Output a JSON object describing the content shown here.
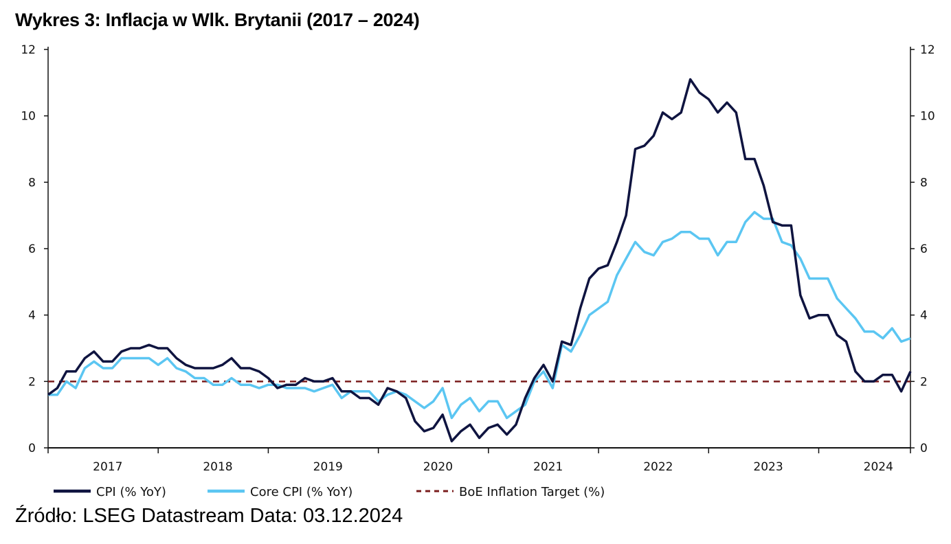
{
  "title": "Wykres 3: Inflacja w Wlk. Brytanii (2017 – 2024)",
  "source": "Źródło: LSEG Datastream Data: 03.12.2024",
  "chart_data": {
    "type": "line",
    "title": "Wykres 3: Inflacja w Wlk. Brytanii (2017 – 2024)",
    "x_start": "2016-12",
    "x_end": "2024-10",
    "x_frequency": "monthly",
    "x_tick_labels": [
      "2017",
      "2018",
      "2019",
      "2020",
      "2021",
      "2022",
      "2023",
      "2024"
    ],
    "ylim": [
      0,
      12
    ],
    "y_ticks": [
      0,
      2,
      4,
      6,
      8,
      10,
      12
    ],
    "y_axis_both_sides": true,
    "grid": false,
    "legend": "bottom",
    "series": [
      {
        "name": "CPI (% YoY)",
        "color": "#0f1440",
        "values": [
          1.6,
          1.8,
          2.3,
          2.3,
          2.7,
          2.9,
          2.6,
          2.6,
          2.9,
          3.0,
          3.0,
          3.1,
          3.0,
          3.0,
          2.7,
          2.5,
          2.4,
          2.4,
          2.4,
          2.5,
          2.7,
          2.4,
          2.4,
          2.3,
          2.1,
          1.8,
          1.9,
          1.9,
          2.1,
          2.0,
          2.0,
          2.1,
          1.7,
          1.7,
          1.5,
          1.5,
          1.3,
          1.8,
          1.7,
          1.5,
          0.8,
          0.5,
          0.6,
          1.0,
          0.2,
          0.5,
          0.7,
          0.3,
          0.6,
          0.7,
          0.4,
          0.7,
          1.5,
          2.1,
          2.5,
          2.0,
          3.2,
          3.1,
          4.2,
          5.1,
          5.4,
          5.5,
          6.2,
          7.0,
          9.0,
          9.1,
          9.4,
          10.1,
          9.9,
          10.1,
          11.1,
          10.7,
          10.5,
          10.1,
          10.4,
          10.1,
          8.7,
          8.7,
          7.9,
          6.8,
          6.7,
          6.7,
          4.6,
          3.9,
          4.0,
          4.0,
          3.4,
          3.2,
          2.3,
          2.0,
          2.0,
          2.2,
          2.2,
          1.7,
          2.3
        ]
      },
      {
        "name": "Core CPI (% YoY)",
        "color": "#5bc6f2",
        "values": [
          1.6,
          1.6,
          2.0,
          1.8,
          2.4,
          2.6,
          2.4,
          2.4,
          2.7,
          2.7,
          2.7,
          2.7,
          2.5,
          2.7,
          2.4,
          2.3,
          2.1,
          2.1,
          1.9,
          1.9,
          2.1,
          1.9,
          1.9,
          1.8,
          1.9,
          1.9,
          1.8,
          1.8,
          1.8,
          1.7,
          1.8,
          1.9,
          1.5,
          1.7,
          1.7,
          1.7,
          1.4,
          1.6,
          1.7,
          1.6,
          1.4,
          1.2,
          1.4,
          1.8,
          0.9,
          1.3,
          1.5,
          1.1,
          1.4,
          1.4,
          0.9,
          1.1,
          1.3,
          2.0,
          2.3,
          1.8,
          3.1,
          2.9,
          3.4,
          4.0,
          4.2,
          4.4,
          5.2,
          5.7,
          6.2,
          5.9,
          5.8,
          6.2,
          6.3,
          6.5,
          6.5,
          6.3,
          6.3,
          5.8,
          6.2,
          6.2,
          6.8,
          7.1,
          6.9,
          6.9,
          6.2,
          6.1,
          5.7,
          5.1,
          5.1,
          5.1,
          4.5,
          4.2,
          3.9,
          3.5,
          3.5,
          3.3,
          3.6,
          3.2,
          3.3
        ]
      },
      {
        "name": "BoE Inflation Target (%)",
        "color": "#7a1c1c",
        "dashed": true,
        "constant": 2
      }
    ]
  }
}
